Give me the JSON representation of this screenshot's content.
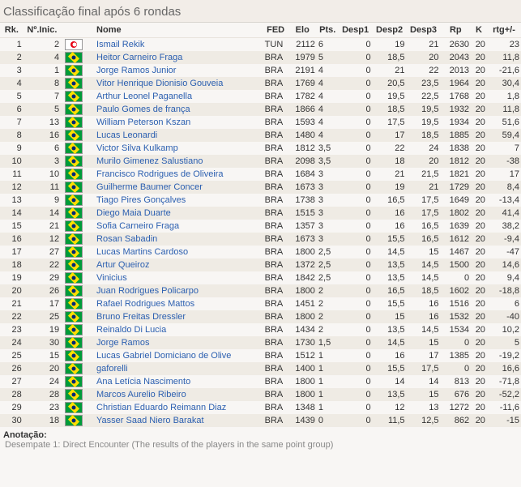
{
  "title": "Classificação final após 6 rondas",
  "headers": {
    "rk": "Rk.",
    "inic": "Nº.Inic.",
    "name": "Nome",
    "fed": "FED",
    "elo": "Elo",
    "pts": "Pts.",
    "d1": "Desp1",
    "d2": "Desp2",
    "d3": "Desp3",
    "rp": "Rp",
    "k": "K",
    "rtg": "rtg+/-"
  },
  "footer": {
    "label": "Anotação:",
    "note": "Desempate 1: Direct Encounter (The results of the players in the same point group)"
  },
  "rows": [
    {
      "rk": 1,
      "inic": 2,
      "flag": "tun",
      "name": "Ismail Rekik",
      "fed": "TUN",
      "elo": "2112",
      "pts": "6",
      "d1": "0",
      "d2": "19",
      "d3": "21",
      "rp": "2630",
      "k": "20",
      "rtg": "23"
    },
    {
      "rk": 2,
      "inic": 4,
      "flag": "bra",
      "name": "Heitor Carneiro Fraga",
      "fed": "BRA",
      "elo": "1979",
      "pts": "5",
      "d1": "0",
      "d2": "18,5",
      "d3": "20",
      "rp": "2043",
      "k": "20",
      "rtg": "11,8"
    },
    {
      "rk": 3,
      "inic": 1,
      "flag": "bra",
      "name": "Jorge Ramos Junior",
      "fed": "BRA",
      "elo": "2191",
      "pts": "4",
      "d1": "0",
      "d2": "21",
      "d3": "22",
      "rp": "2013",
      "k": "20",
      "rtg": "-21,6"
    },
    {
      "rk": 4,
      "inic": 8,
      "flag": "bra",
      "name": "Vitor Henrique Dionisio Gouveia",
      "fed": "BRA",
      "elo": "1769",
      "pts": "4",
      "d1": "0",
      "d2": "20,5",
      "d3": "23,5",
      "rp": "1964",
      "k": "20",
      "rtg": "30,4"
    },
    {
      "rk": 5,
      "inic": 7,
      "flag": "bra",
      "name": "Arthur Leonel Paganella",
      "fed": "BRA",
      "elo": "1782",
      "pts": "4",
      "d1": "0",
      "d2": "19,5",
      "d3": "22,5",
      "rp": "1768",
      "k": "20",
      "rtg": "1,8"
    },
    {
      "rk": 6,
      "inic": 5,
      "flag": "bra",
      "name": "Paulo Gomes de frança",
      "fed": "BRA",
      "elo": "1866",
      "pts": "4",
      "d1": "0",
      "d2": "18,5",
      "d3": "19,5",
      "rp": "1932",
      "k": "20",
      "rtg": "11,8"
    },
    {
      "rk": 7,
      "inic": 13,
      "flag": "bra",
      "name": "William Peterson Kszan",
      "fed": "BRA",
      "elo": "1593",
      "pts": "4",
      "d1": "0",
      "d2": "17,5",
      "d3": "19,5",
      "rp": "1934",
      "k": "20",
      "rtg": "51,6"
    },
    {
      "rk": 8,
      "inic": 16,
      "flag": "bra",
      "name": "Lucas Leonardi",
      "fed": "BRA",
      "elo": "1480",
      "pts": "4",
      "d1": "0",
      "d2": "17",
      "d3": "18,5",
      "rp": "1885",
      "k": "20",
      "rtg": "59,4"
    },
    {
      "rk": 9,
      "inic": 6,
      "flag": "bra",
      "name": "Victor Silva Kulkamp",
      "fed": "BRA",
      "elo": "1812",
      "pts": "3,5",
      "d1": "0",
      "d2": "22",
      "d3": "24",
      "rp": "1838",
      "k": "20",
      "rtg": "7"
    },
    {
      "rk": 10,
      "inic": 3,
      "flag": "bra",
      "name": "Murilo Gimenez Salustiano",
      "fed": "BRA",
      "elo": "2098",
      "pts": "3,5",
      "d1": "0",
      "d2": "18",
      "d3": "20",
      "rp": "1812",
      "k": "20",
      "rtg": "-38"
    },
    {
      "rk": 11,
      "inic": 10,
      "flag": "bra",
      "name": "Francisco Rodrigues de Oliveira",
      "fed": "BRA",
      "elo": "1684",
      "pts": "3",
      "d1": "0",
      "d2": "21",
      "d3": "21,5",
      "rp": "1821",
      "k": "20",
      "rtg": "17"
    },
    {
      "rk": 12,
      "inic": 11,
      "flag": "bra",
      "name": "Guilherme Baumer Concer",
      "fed": "BRA",
      "elo": "1673",
      "pts": "3",
      "d1": "0",
      "d2": "19",
      "d3": "21",
      "rp": "1729",
      "k": "20",
      "rtg": "8,4"
    },
    {
      "rk": 13,
      "inic": 9,
      "flag": "bra",
      "name": "Tiago Pires Gonçalves",
      "fed": "BRA",
      "elo": "1738",
      "pts": "3",
      "d1": "0",
      "d2": "16,5",
      "d3": "17,5",
      "rp": "1649",
      "k": "20",
      "rtg": "-13,4"
    },
    {
      "rk": 14,
      "inic": 14,
      "flag": "bra",
      "name": "Diego Maia Duarte",
      "fed": "BRA",
      "elo": "1515",
      "pts": "3",
      "d1": "0",
      "d2": "16",
      "d3": "17,5",
      "rp": "1802",
      "k": "20",
      "rtg": "41,4"
    },
    {
      "rk": 15,
      "inic": 21,
      "flag": "bra",
      "name": "Sofia Carneiro Fraga",
      "fed": "BRA",
      "elo": "1357",
      "pts": "3",
      "d1": "0",
      "d2": "16",
      "d3": "16,5",
      "rp": "1639",
      "k": "20",
      "rtg": "38,2"
    },
    {
      "rk": 16,
      "inic": 12,
      "flag": "bra",
      "name": "Rosan Sabadin",
      "fed": "BRA",
      "elo": "1673",
      "pts": "3",
      "d1": "0",
      "d2": "15,5",
      "d3": "16,5",
      "rp": "1612",
      "k": "20",
      "rtg": "-9,4"
    },
    {
      "rk": 17,
      "inic": 27,
      "flag": "bra",
      "name": "Lucas Martins Cardoso",
      "fed": "BRA",
      "elo": "1800",
      "pts": "2,5",
      "d1": "0",
      "d2": "14,5",
      "d3": "15",
      "rp": "1467",
      "k": "20",
      "rtg": "-47"
    },
    {
      "rk": 18,
      "inic": 22,
      "flag": "bra",
      "name": "Artur Queiroz",
      "fed": "BRA",
      "elo": "1372",
      "pts": "2,5",
      "d1": "0",
      "d2": "13,5",
      "d3": "14,5",
      "rp": "1500",
      "k": "20",
      "rtg": "14,6"
    },
    {
      "rk": 19,
      "inic": 29,
      "flag": "bra",
      "name": "Vinicius",
      "fed": "BRA",
      "elo": "1842",
      "pts": "2,5",
      "d1": "0",
      "d2": "13,5",
      "d3": "14,5",
      "rp": "0",
      "k": "20",
      "rtg": "9,4"
    },
    {
      "rk": 20,
      "inic": 26,
      "flag": "bra",
      "name": "Juan Rodrigues Policarpo",
      "fed": "BRA",
      "elo": "1800",
      "pts": "2",
      "d1": "0",
      "d2": "16,5",
      "d3": "18,5",
      "rp": "1602",
      "k": "20",
      "rtg": "-18,8"
    },
    {
      "rk": 21,
      "inic": 17,
      "flag": "bra",
      "name": "Rafael Rodrigues Mattos",
      "fed": "BRA",
      "elo": "1451",
      "pts": "2",
      "d1": "0",
      "d2": "15,5",
      "d3": "16",
      "rp": "1516",
      "k": "20",
      "rtg": "6"
    },
    {
      "rk": 22,
      "inic": 25,
      "flag": "bra",
      "name": "Bruno Freitas Dressler",
      "fed": "BRA",
      "elo": "1800",
      "pts": "2",
      "d1": "0",
      "d2": "15",
      "d3": "16",
      "rp": "1532",
      "k": "20",
      "rtg": "-40"
    },
    {
      "rk": 23,
      "inic": 19,
      "flag": "bra",
      "name": "Reinaldo Di Lucia",
      "fed": "BRA",
      "elo": "1434",
      "pts": "2",
      "d1": "0",
      "d2": "13,5",
      "d3": "14,5",
      "rp": "1534",
      "k": "20",
      "rtg": "10,2"
    },
    {
      "rk": 24,
      "inic": 30,
      "flag": "bra",
      "name": "Jorge Ramos",
      "fed": "BRA",
      "elo": "1730",
      "pts": "1,5",
      "d1": "0",
      "d2": "14,5",
      "d3": "15",
      "rp": "0",
      "k": "20",
      "rtg": "5"
    },
    {
      "rk": 25,
      "inic": 15,
      "flag": "bra",
      "name": "Lucas Gabriel Domiciano de Olive",
      "fed": "BRA",
      "elo": "1512",
      "pts": "1",
      "d1": "0",
      "d2": "16",
      "d3": "17",
      "rp": "1385",
      "k": "20",
      "rtg": "-19,2"
    },
    {
      "rk": 26,
      "inic": 20,
      "flag": "bra",
      "name": "gaforelli",
      "fed": "BRA",
      "elo": "1400",
      "pts": "1",
      "d1": "0",
      "d2": "15,5",
      "d3": "17,5",
      "rp": "0",
      "k": "20",
      "rtg": "16,6"
    },
    {
      "rk": 27,
      "inic": 24,
      "flag": "bra",
      "name": "Ana Letícia Nascimento",
      "fed": "BRA",
      "elo": "1800",
      "pts": "1",
      "d1": "0",
      "d2": "14",
      "d3": "14",
      "rp": "813",
      "k": "20",
      "rtg": "-71,8"
    },
    {
      "rk": 28,
      "inic": 28,
      "flag": "bra",
      "name": "Marcos Aurelio Ribeiro",
      "fed": "BRA",
      "elo": "1800",
      "pts": "1",
      "d1": "0",
      "d2": "13,5",
      "d3": "15",
      "rp": "676",
      "k": "20",
      "rtg": "-52,2"
    },
    {
      "rk": 29,
      "inic": 23,
      "flag": "bra",
      "name": "Christian Eduardo Reimann Diaz",
      "fed": "BRA",
      "elo": "1348",
      "pts": "1",
      "d1": "0",
      "d2": "12",
      "d3": "13",
      "rp": "1272",
      "k": "20",
      "rtg": "-11,6"
    },
    {
      "rk": 30,
      "inic": 18,
      "flag": "bra",
      "name": "Yasser Saad Niero Barakat",
      "fed": "BRA",
      "elo": "1439",
      "pts": "0",
      "d1": "0",
      "d2": "11,5",
      "d3": "12,5",
      "rp": "862",
      "k": "20",
      "rtg": "-15"
    }
  ]
}
